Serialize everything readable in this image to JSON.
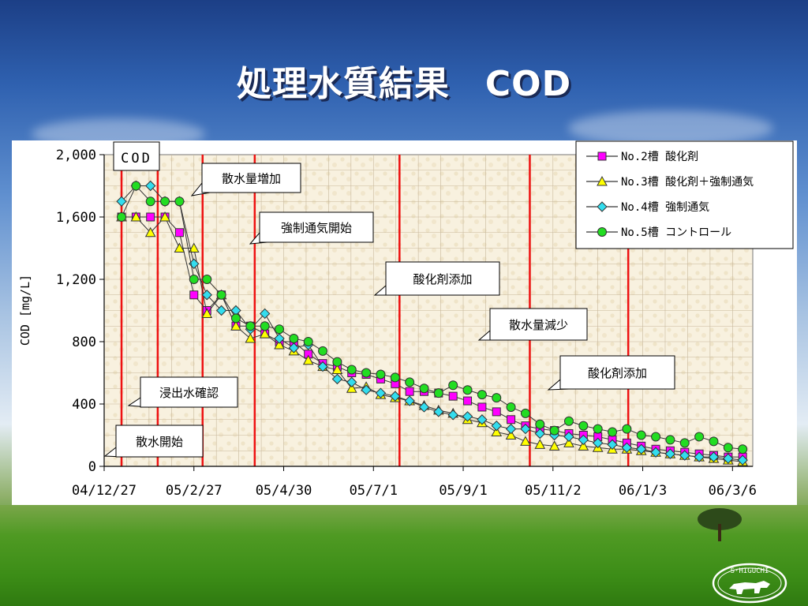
{
  "page": {
    "title": "処理水質結果　COD"
  },
  "chart_data": {
    "type": "line",
    "title": "",
    "inset_label": "COD",
    "xlabel": "",
    "ylabel": "COD [mg/L]",
    "x_tick_labels": [
      "04/12/27",
      "05/2/27",
      "05/4/30",
      "05/7/1",
      "05/9/1",
      "05/11/2",
      "06/1/3",
      "06/3/6"
    ],
    "y_ticks": [
      0,
      400,
      800,
      1200,
      1600,
      2000
    ],
    "y_tick_labels": [
      "0",
      "400",
      "800",
      "1,200",
      "1,600",
      "2,000"
    ],
    "xlim": [
      "2004-12-27",
      "2006-03-20"
    ],
    "ylim": [
      0,
      2000
    ],
    "grid": true,
    "legend_position": "top-right",
    "colors": {
      "plot_background": "#f8f1df",
      "event_line": "#ee1111",
      "series_no2": "#ff00ff",
      "series_no3": "#ffff00",
      "series_no4": "#33ddee",
      "series_no5": "#22dd22"
    },
    "event_lines": [
      {
        "date": "2005-01-08",
        "label": "散水開始"
      },
      {
        "date": "2005-02-02",
        "label": "浸出水確認"
      },
      {
        "date": "2005-03-05",
        "label": "散水量増加"
      },
      {
        "date": "2005-04-10",
        "label": "強制通気開始"
      },
      {
        "date": "2005-07-19",
        "label": "酸化剤添加"
      },
      {
        "date": "2005-10-17",
        "label": "散水量減少"
      },
      {
        "date": "2005-12-24",
        "label": "酸化剤添加"
      }
    ],
    "series": [
      {
        "name": "No.2槽 酸化剤",
        "marker": "square",
        "color": "#ff00ff",
        "x": [
          "2005-01-08",
          "2005-01-18",
          "2005-01-28",
          "2005-02-07",
          "2005-02-17",
          "2005-02-27",
          "2005-03-08",
          "2005-03-18",
          "2005-03-28",
          "2005-04-07",
          "2005-04-17",
          "2005-04-27",
          "2005-05-07",
          "2005-05-17",
          "2005-05-27",
          "2005-06-06",
          "2005-06-16",
          "2005-06-26",
          "2005-07-06",
          "2005-07-16",
          "2005-07-26",
          "2005-08-05",
          "2005-08-15",
          "2005-08-25",
          "2005-09-04",
          "2005-09-14",
          "2005-09-24",
          "2005-10-04",
          "2005-10-14",
          "2005-10-24",
          "2005-11-03",
          "2005-11-13",
          "2005-11-23",
          "2005-12-03",
          "2005-12-13",
          "2005-12-23",
          "2006-01-02",
          "2006-01-12",
          "2006-01-22",
          "2006-02-01",
          "2006-02-11",
          "2006-02-21",
          "2006-03-03",
          "2006-03-13"
        ],
        "y": [
          1600,
          1600,
          1600,
          1600,
          1500,
          1100,
          1000,
          1100,
          900,
          900,
          850,
          800,
          800,
          720,
          660,
          640,
          600,
          590,
          560,
          530,
          480,
          480,
          470,
          450,
          420,
          380,
          350,
          300,
          260,
          240,
          230,
          210,
          200,
          190,
          170,
          150,
          130,
          110,
          100,
          90,
          80,
          70,
          60,
          60
        ]
      },
      {
        "name": "No.3槽 酸化剤＋強制通気",
        "marker": "triangle",
        "color": "#ffff00",
        "x": [
          "2005-01-08",
          "2005-01-18",
          "2005-01-28",
          "2005-02-07",
          "2005-02-17",
          "2005-02-27",
          "2005-03-08",
          "2005-03-18",
          "2005-03-28",
          "2005-04-07",
          "2005-04-17",
          "2005-04-27",
          "2005-05-07",
          "2005-05-17",
          "2005-05-27",
          "2005-06-06",
          "2005-06-16",
          "2005-06-26",
          "2005-07-06",
          "2005-07-16",
          "2005-07-26",
          "2005-08-05",
          "2005-08-15",
          "2005-08-25",
          "2005-09-04",
          "2005-09-14",
          "2005-09-24",
          "2005-10-04",
          "2005-10-14",
          "2005-10-24",
          "2005-11-03",
          "2005-11-13",
          "2005-11-23",
          "2005-12-03",
          "2005-12-13",
          "2005-12-23",
          "2006-01-02",
          "2006-01-12",
          "2006-01-22",
          "2006-02-01",
          "2006-02-11",
          "2006-02-21",
          "2006-03-03",
          "2006-03-13"
        ],
        "y": [
          1600,
          1600,
          1500,
          1600,
          1400,
          1400,
          980,
          1100,
          900,
          820,
          850,
          780,
          740,
          680,
          640,
          620,
          500,
          510,
          460,
          440,
          420,
          390,
          360,
          340,
          300,
          280,
          220,
          200,
          160,
          140,
          130,
          150,
          130,
          120,
          110,
          110,
          100,
          90,
          80,
          70,
          60,
          50,
          40,
          30
        ]
      },
      {
        "name": "No.4槽 強制通気",
        "marker": "diamond",
        "color": "#33ddee",
        "x": [
          "2005-01-08",
          "2005-01-18",
          "2005-01-28",
          "2005-02-07",
          "2005-02-17",
          "2005-02-27",
          "2005-03-08",
          "2005-03-18",
          "2005-03-28",
          "2005-04-07",
          "2005-04-17",
          "2005-04-27",
          "2005-05-07",
          "2005-05-17",
          "2005-05-27",
          "2005-06-06",
          "2005-06-16",
          "2005-06-26",
          "2005-07-06",
          "2005-07-16",
          "2005-07-26",
          "2005-08-05",
          "2005-08-15",
          "2005-08-25",
          "2005-09-04",
          "2005-09-14",
          "2005-09-24",
          "2005-10-04",
          "2005-10-14",
          "2005-10-24",
          "2005-11-03",
          "2005-11-13",
          "2005-11-23",
          "2005-12-03",
          "2005-12-13",
          "2005-12-23",
          "2006-01-02",
          "2006-01-12",
          "2006-01-22",
          "2006-02-01",
          "2006-02-11",
          "2006-02-21",
          "2006-03-03",
          "2006-03-13"
        ],
        "y": [
          1700,
          1800,
          1800,
          1700,
          1700,
          1300,
          1100,
          1000,
          1000,
          880,
          980,
          820,
          760,
          780,
          640,
          560,
          540,
          490,
          470,
          450,
          420,
          380,
          350,
          330,
          320,
          300,
          260,
          240,
          240,
          210,
          200,
          190,
          170,
          150,
          140,
          120,
          110,
          90,
          80,
          70,
          60,
          60,
          50,
          40
        ]
      },
      {
        "name": "No.5槽 コントロール",
        "marker": "circle",
        "color": "#22dd22",
        "x": [
          "2005-01-08",
          "2005-01-18",
          "2005-01-28",
          "2005-02-07",
          "2005-02-17",
          "2005-02-27",
          "2005-03-08",
          "2005-03-18",
          "2005-03-28",
          "2005-04-07",
          "2005-04-17",
          "2005-04-27",
          "2005-05-07",
          "2005-05-17",
          "2005-05-27",
          "2005-06-06",
          "2005-06-16",
          "2005-06-26",
          "2005-07-06",
          "2005-07-16",
          "2005-07-26",
          "2005-08-05",
          "2005-08-15",
          "2005-08-25",
          "2005-09-04",
          "2005-09-14",
          "2005-09-24",
          "2005-10-04",
          "2005-10-14",
          "2005-10-24",
          "2005-11-03",
          "2005-11-13",
          "2005-11-23",
          "2005-12-03",
          "2005-12-13",
          "2005-12-23",
          "2006-01-02",
          "2006-01-12",
          "2006-01-22",
          "2006-02-01",
          "2006-02-11",
          "2006-02-21",
          "2006-03-03",
          "2006-03-13"
        ],
        "y": [
          1600,
          1800,
          1700,
          1700,
          1700,
          1200,
          1200,
          1100,
          950,
          900,
          900,
          880,
          820,
          800,
          740,
          670,
          620,
          600,
          590,
          570,
          540,
          500,
          470,
          520,
          490,
          460,
          440,
          380,
          340,
          270,
          230,
          290,
          260,
          240,
          220,
          240,
          200,
          190,
          170,
          150,
          190,
          160,
          120,
          110
        ]
      }
    ]
  },
  "icons": {
    "logo": "higuchi-bull-logo",
    "tree": "lone-tree-icon"
  },
  "logo": {
    "text": "S·HIGUCHI"
  }
}
